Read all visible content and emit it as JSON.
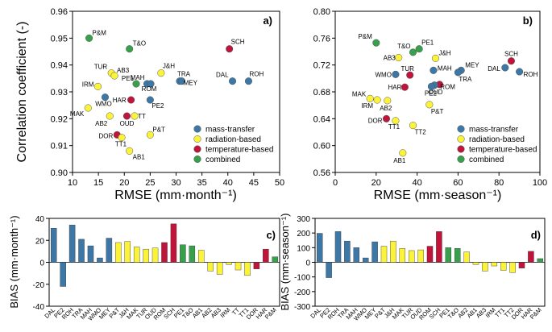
{
  "colors": {
    "mass-transfer": "#3c77a6",
    "radiation-based": "#fbf33a",
    "temperature-based": "#c0143a",
    "combined": "#36a04a"
  },
  "chart_data": [
    {
      "id": "a",
      "type": "scatter",
      "panel_label": "a)",
      "xlabel": "RMSE (mm·month⁻¹)",
      "ylabel": "Correlation coefficient (-)",
      "xlim": [
        10,
        50
      ],
      "ylim": [
        0.9,
        0.96
      ],
      "xticks": [
        "10",
        "15",
        "20",
        "25",
        "30",
        "35",
        "40",
        "45",
        "50"
      ],
      "yticks": [
        "0.90",
        "0.91",
        "0.92",
        "0.93",
        "0.94",
        "0.95",
        "0.96"
      ],
      "legend_position": "bottom-right",
      "legend": [
        {
          "name": "mass-transfer",
          "group": "mass-transfer"
        },
        {
          "name": "radiation-based",
          "group": "radiation-based"
        },
        {
          "name": "temperature-based",
          "group": "temperature-based"
        },
        {
          "name": "combined",
          "group": "combined"
        }
      ],
      "points": [
        {
          "label": "P&M",
          "x": 13.2,
          "y": 0.95,
          "group": "combined"
        },
        {
          "label": "T&O",
          "x": 21.0,
          "y": 0.946,
          "group": "combined"
        },
        {
          "label": "PE1",
          "x": 22.3,
          "y": 0.933,
          "group": "combined"
        },
        {
          "label": "SCH",
          "x": 40.3,
          "y": 0.946,
          "group": "temperature-based"
        },
        {
          "label": "HAR",
          "x": 21.3,
          "y": 0.927,
          "group": "temperature-based"
        },
        {
          "label": "OUD",
          "x": 20.5,
          "y": 0.921,
          "group": "temperature-based"
        },
        {
          "label": "DOR",
          "x": 18.6,
          "y": 0.914,
          "group": "temperature-based"
        },
        {
          "label": "TUR",
          "x": 17.5,
          "y": 0.937,
          "group": "radiation-based"
        },
        {
          "label": "AB3",
          "x": 18.1,
          "y": 0.936,
          "group": "radiation-based"
        },
        {
          "label": "J&H",
          "x": 27.1,
          "y": 0.937,
          "group": "radiation-based"
        },
        {
          "label": "IRM",
          "x": 14.9,
          "y": 0.932,
          "group": "radiation-based"
        },
        {
          "label": "MAK",
          "x": 13.0,
          "y": 0.924,
          "group": "radiation-based"
        },
        {
          "label": "AB2",
          "x": 17.2,
          "y": 0.921,
          "group": "radiation-based"
        },
        {
          "label": "TT",
          "x": 22.0,
          "y": 0.921,
          "group": "radiation-based"
        },
        {
          "label": "P&T",
          "x": 25.0,
          "y": 0.914,
          "group": "radiation-based"
        },
        {
          "label": "TT1",
          "x": 19.5,
          "y": 0.913,
          "group": "radiation-based"
        },
        {
          "label": "AB1",
          "x": 21.0,
          "y": 0.908,
          "group": "radiation-based"
        },
        {
          "label": "WMO",
          "x": 16.3,
          "y": 0.928,
          "group": "mass-transfer"
        },
        {
          "label": "MAH",
          "x": 24.4,
          "y": 0.933,
          "group": "mass-transfer"
        },
        {
          "label": "ROM",
          "x": 25.1,
          "y": 0.933,
          "group": "mass-transfer"
        },
        {
          "label": "PE2",
          "x": 25.0,
          "y": 0.927,
          "group": "mass-transfer"
        },
        {
          "label": "TRA",
          "x": 30.7,
          "y": 0.934,
          "group": "mass-transfer"
        },
        {
          "label": "MEY",
          "x": 31.1,
          "y": 0.934,
          "group": "mass-transfer"
        },
        {
          "label": "DAL",
          "x": 40.9,
          "y": 0.934,
          "group": "mass-transfer"
        },
        {
          "label": "ROH",
          "x": 44.0,
          "y": 0.934,
          "group": "mass-transfer"
        }
      ]
    },
    {
      "id": "b",
      "type": "scatter",
      "panel_label": "b)",
      "xlabel": "RMSE (mm·season⁻¹)",
      "ylabel": "",
      "xlim": [
        0,
        100
      ],
      "ylim": [
        0.56,
        0.8
      ],
      "xticks": [
        "0",
        "20",
        "40",
        "60",
        "80",
        "100"
      ],
      "yticks": [
        "0.56",
        "0.60",
        "0.64",
        "0.68",
        "0.72",
        "0.76",
        "0.80"
      ],
      "legend_position": "bottom-right",
      "legend": [
        {
          "name": "mass-transfer",
          "group": "mass-transfer"
        },
        {
          "name": "radiation-based",
          "group": "radiation-based"
        },
        {
          "name": "temperature-based",
          "group": "temperature-based"
        },
        {
          "name": "combined",
          "group": "combined"
        }
      ],
      "points": [
        {
          "label": "P&M",
          "x": 20.0,
          "y": 0.753,
          "group": "combined"
        },
        {
          "label": "T&O",
          "x": 38.0,
          "y": 0.739,
          "group": "combined"
        },
        {
          "label": "PE1",
          "x": 41.0,
          "y": 0.744,
          "group": "combined"
        },
        {
          "label": "SCH",
          "x": 86.0,
          "y": 0.726,
          "group": "temperature-based"
        },
        {
          "label": "TUR",
          "x": 36.5,
          "y": 0.705,
          "group": "temperature-based"
        },
        {
          "label": "HAR",
          "x": 34.0,
          "y": 0.687,
          "group": "temperature-based"
        },
        {
          "label": "OUD",
          "x": 51.0,
          "y": 0.691,
          "group": "temperature-based"
        },
        {
          "label": "DOR",
          "x": 25.0,
          "y": 0.64,
          "group": "temperature-based"
        },
        {
          "label": "AB3",
          "x": 31.0,
          "y": 0.731,
          "group": "radiation-based"
        },
        {
          "label": "J&H",
          "x": 49.0,
          "y": 0.73,
          "group": "radiation-based"
        },
        {
          "label": "MAK",
          "x": 17.0,
          "y": 0.67,
          "group": "radiation-based"
        },
        {
          "label": "IRM",
          "x": 20.5,
          "y": 0.668,
          "group": "radiation-based"
        },
        {
          "label": "AB2",
          "x": 25.5,
          "y": 0.667,
          "group": "radiation-based"
        },
        {
          "label": "P&T",
          "x": 46.0,
          "y": 0.661,
          "group": "radiation-based"
        },
        {
          "label": "TT1",
          "x": 29.5,
          "y": 0.637,
          "group": "radiation-based"
        },
        {
          "label": "TT2",
          "x": 38.0,
          "y": 0.63,
          "group": "radiation-based"
        },
        {
          "label": "AB1",
          "x": 33.0,
          "y": 0.589,
          "group": "radiation-based"
        },
        {
          "label": "WMO",
          "x": 29.5,
          "y": 0.706,
          "group": "mass-transfer"
        },
        {
          "label": "MAH",
          "x": 48.0,
          "y": 0.712,
          "group": "mass-transfer"
        },
        {
          "label": "ROM",
          "x": 48.5,
          "y": 0.69,
          "group": "mass-transfer"
        },
        {
          "label": "PE2",
          "x": 47.0,
          "y": 0.688,
          "group": "mass-transfer"
        },
        {
          "label": "MEY",
          "x": 61.5,
          "y": 0.712,
          "group": "mass-transfer"
        },
        {
          "label": "TRA",
          "x": 60.0,
          "y": 0.709,
          "group": "mass-transfer"
        },
        {
          "label": "DAL",
          "x": 83.0,
          "y": 0.716,
          "group": "mass-transfer"
        },
        {
          "label": "ROH",
          "x": 90.0,
          "y": 0.71,
          "group": "mass-transfer"
        }
      ]
    },
    {
      "id": "c",
      "type": "bar",
      "panel_label": "c)",
      "ylabel": "BIAS (mm·month⁻¹)",
      "ylim": [
        -40,
        40
      ],
      "yticks": [
        "-40",
        "-20",
        "0",
        "20",
        "40"
      ],
      "categories": [
        "DAL",
        "PE2",
        "ROH",
        "TRA",
        "MAH",
        "WMO",
        "MEY",
        "P&T",
        "J&H",
        "MAK",
        "TUR",
        "OUD",
        "ROM",
        "SCH",
        "PE1",
        "T&O",
        "AB1",
        "AB2",
        "AB3",
        "IRM",
        "TT",
        "TT1",
        "DOR",
        "HAR",
        "P&M"
      ],
      "values": [
        31,
        -22,
        34,
        21,
        15,
        4,
        22,
        18,
        19,
        14,
        12,
        13,
        18,
        35,
        16,
        15,
        11,
        -8,
        -11,
        -2,
        -7,
        -12,
        -6,
        12,
        5
      ],
      "groups": [
        "mass-transfer",
        "mass-transfer",
        "mass-transfer",
        "mass-transfer",
        "mass-transfer",
        "mass-transfer",
        "mass-transfer",
        "radiation-based",
        "radiation-based",
        "radiation-based",
        "radiation-based",
        "radiation-based",
        "temperature-based",
        "temperature-based",
        "combined",
        "combined",
        "radiation-based",
        "radiation-based",
        "radiation-based",
        "radiation-based",
        "radiation-based",
        "radiation-based",
        "temperature-based",
        "temperature-based",
        "combined"
      ]
    },
    {
      "id": "d",
      "type": "bar",
      "panel_label": "d)",
      "ylabel": "BIAS (mm·season⁻¹)",
      "ylim": [
        -300,
        300
      ],
      "yticks": [
        "-300",
        "-200",
        "-100",
        "0",
        "100",
        "200",
        "300"
      ],
      "categories": [
        "DAL",
        "PE2",
        "ROH",
        "TRA",
        "MAH",
        "WMO",
        "MEY",
        "P&T",
        "J&H",
        "MAK",
        "TUR",
        "OUD",
        "ROM",
        "SCH",
        "PE1",
        "T&O",
        "AB2",
        "AB1",
        "AB3",
        "IRM",
        "TT1",
        "TT2",
        "DOR",
        "HAR",
        "P&M"
      ],
      "values": [
        198,
        -105,
        210,
        145,
        100,
        30,
        140,
        110,
        145,
        95,
        80,
        85,
        110,
        210,
        100,
        95,
        70,
        -15,
        -60,
        -25,
        -55,
        -70,
        -40,
        75,
        25
      ],
      "groups": [
        "mass-transfer",
        "mass-transfer",
        "mass-transfer",
        "mass-transfer",
        "mass-transfer",
        "mass-transfer",
        "mass-transfer",
        "radiation-based",
        "radiation-based",
        "radiation-based",
        "radiation-based",
        "radiation-based",
        "temperature-based",
        "temperature-based",
        "combined",
        "combined",
        "radiation-based",
        "radiation-based",
        "radiation-based",
        "radiation-based",
        "radiation-based",
        "radiation-based",
        "temperature-based",
        "temperature-based",
        "combined"
      ]
    }
  ]
}
